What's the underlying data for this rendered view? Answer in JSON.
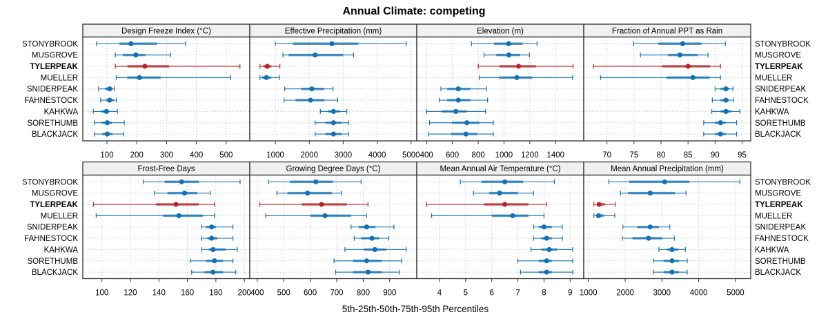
{
  "chart_data": {
    "type": "scatter",
    "subtype": "percentile-interval dot plot (5th-25th-50th-75th-95th)",
    "title": "Annual Climate: competing",
    "xlabel": "5th-25th-50th-75th-95th Percentiles",
    "ylabel": "",
    "grid": true,
    "legend": "none",
    "sites": [
      "STONYBROOK",
      "MUSGROVE",
      "TYLERPEAK",
      "MUELLER",
      "SNIDERPEAK",
      "FAHNESTOCK",
      "KAHKWA",
      "SORETHUMB",
      "BLACKJACK"
    ],
    "highlight_site": "TYLERPEAK",
    "colors": {
      "site": "#1370b3",
      "highlight": "#b9242a",
      "strip": "#f0f0f0",
      "grid": "#c8c8c8"
    },
    "value_order": [
      "p5",
      "p25",
      "p50",
      "p75",
      "p95"
    ],
    "panels": [
      {
        "title": "Design Freeze Index (°C)",
        "xlim": [
          19,
          579
        ],
        "ticks": [
          100,
          200,
          300,
          400,
          500
        ],
        "values": [
          [
            65,
            142,
            181,
            268,
            364
          ],
          [
            128,
            153,
            197,
            229,
            313
          ],
          [
            128,
            169,
            227,
            308,
            546
          ],
          [
            131,
            168,
            209,
            280,
            515
          ],
          [
            72,
            93,
            109,
            119,
            125
          ],
          [
            79,
            98,
            109,
            123,
            132
          ],
          [
            54,
            81,
            98,
            108,
            135
          ],
          [
            58,
            82,
            101,
            117,
            158
          ],
          [
            58,
            84,
            101,
            119,
            156
          ]
        ]
      },
      {
        "title": "Effective Precipitation (mm)",
        "xlim": [
          248,
          5167
        ],
        "ticks": [
          1000,
          2000,
          3000,
          4000,
          5000
        ],
        "values": [
          [
            1000,
            1515,
            2667,
            3446,
            4855
          ],
          [
            1224,
            1393,
            2172,
            3000,
            3305
          ],
          [
            547,
            649,
            763,
            885,
            1135
          ],
          [
            547,
            614,
            736,
            885,
            1122
          ],
          [
            1278,
            1766,
            2077,
            2443,
            2701
          ],
          [
            1257,
            1596,
            2037,
            2443,
            2836
          ],
          [
            2328,
            2545,
            2714,
            2904,
            3107
          ],
          [
            2172,
            2477,
            2714,
            2951,
            3154
          ],
          [
            2172,
            2477,
            2714,
            2951,
            3154
          ]
        ]
      },
      {
        "title": "Elevation (m)",
        "xlim": [
          324,
          1618
        ],
        "ticks": [
          400,
          600,
          800,
          1000,
          1200,
          1400
        ],
        "values": [
          [
            748,
            922,
            1036,
            1145,
            1256
          ],
          [
            846,
            940,
            1038,
            1126,
            1197
          ],
          [
            801,
            965,
            1113,
            1247,
            1536
          ],
          [
            809,
            961,
            1099,
            1220,
            1532
          ],
          [
            511,
            560,
            646,
            739,
            865
          ],
          [
            498,
            560,
            646,
            739,
            873
          ],
          [
            400,
            516,
            627,
            712,
            858
          ],
          [
            423,
            596,
            712,
            810,
            917
          ],
          [
            416,
            591,
            705,
            792,
            917
          ]
        ]
      },
      {
        "title": "Fraction of Annual PPT as Rain",
        "xlim": [
          65.7,
          96.6
        ],
        "ticks": [
          70,
          75,
          80,
          85,
          90,
          95
        ],
        "values": [
          [
            74.9,
            79.5,
            84.0,
            87.5,
            91.9
          ],
          [
            76.2,
            81.3,
            83.5,
            86.8,
            88.7
          ],
          [
            67.5,
            80.2,
            85.0,
            89.1,
            91.0
          ],
          [
            68.8,
            81.0,
            85.9,
            89.0,
            91.0
          ],
          [
            90.0,
            91.0,
            92.0,
            92.6,
            93.3
          ],
          [
            89.5,
            91.0,
            92.0,
            92.6,
            93.4
          ],
          [
            89.4,
            91.0,
            92.0,
            93.0,
            94.6
          ],
          [
            87.9,
            90.0,
            91.0,
            92.0,
            94.0
          ],
          [
            87.9,
            90.0,
            91.0,
            92.0,
            94.0
          ]
        ]
      },
      {
        "title": "Frost-Free Days",
        "xlim": [
          86.6,
          203.8
        ],
        "ticks": [
          100,
          120,
          140,
          160,
          180,
          200
        ],
        "values": [
          [
            129,
            144,
            156,
            168,
            197
          ],
          [
            137,
            146,
            158,
            167,
            176
          ],
          [
            94,
            138,
            152,
            168,
            179
          ],
          [
            96,
            143,
            154,
            171,
            179
          ],
          [
            170,
            173,
            177,
            180,
            192
          ],
          [
            170,
            174,
            177,
            181,
            192
          ],
          [
            170,
            175,
            178,
            187,
            195
          ],
          [
            162,
            173,
            179,
            185,
            192
          ],
          [
            163,
            172,
            178,
            185,
            194
          ]
        ]
      },
      {
        "title": "Growing Degree Days (°C)",
        "xlim": [
          372,
          1002
        ],
        "ticks": [
          400,
          500,
          600,
          700,
          800,
          900
        ],
        "values": [
          [
            443,
            523,
            621,
            686,
            792
          ],
          [
            474,
            514,
            590,
            682,
            718
          ],
          [
            410,
            568,
            643,
            738,
            818
          ],
          [
            432,
            601,
            656,
            754,
            812
          ],
          [
            754,
            783,
            813,
            846,
            916
          ],
          [
            766,
            792,
            833,
            861,
            896
          ],
          [
            731,
            803,
            844,
            887,
            962
          ],
          [
            690,
            761,
            813,
            870,
            945
          ],
          [
            696,
            761,
            818,
            870,
            937
          ]
        ]
      },
      {
        "title": "Mean Annual Air Temperature (°C)",
        "xlim": [
          3.13,
          9.52
        ],
        "ticks": [
          4,
          5,
          6,
          7,
          8,
          9
        ],
        "values": [
          [
            4.8,
            5.6,
            6.5,
            7.2,
            8.4
          ],
          [
            5.3,
            5.9,
            6.3,
            7.0,
            7.6
          ],
          [
            3.5,
            5.7,
            6.5,
            7.4,
            8.1
          ],
          [
            3.7,
            6.0,
            6.8,
            7.4,
            8.0
          ],
          [
            7.6,
            7.8,
            8.0,
            8.3,
            8.7
          ],
          [
            7.6,
            7.9,
            8.1,
            8.3,
            8.7
          ],
          [
            7.5,
            7.9,
            8.2,
            8.5,
            9.1
          ],
          [
            7.0,
            7.8,
            8.1,
            8.3,
            9.1
          ],
          [
            7.1,
            7.8,
            8.1,
            8.3,
            9.1
          ]
        ]
      },
      {
        "title": "Mean Annual Precipitation (mm)",
        "xlim": [
          874,
          5415
        ],
        "ticks": [
          1000,
          2000,
          3000,
          4000,
          5000
        ],
        "values": [
          [
            1555,
            2107,
            3075,
            3750,
            5120
          ],
          [
            1874,
            2075,
            2681,
            3357,
            3657
          ],
          [
            1150,
            1231,
            1293,
            1450,
            1732
          ],
          [
            1150,
            1212,
            1281,
            1418,
            1719
          ],
          [
            1938,
            2325,
            2681,
            2919,
            3214
          ],
          [
            1919,
            2201,
            2638,
            3013,
            3338
          ],
          [
            2919,
            3138,
            3276,
            3450,
            3638
          ],
          [
            2764,
            3045,
            3276,
            3463,
            3688
          ],
          [
            2764,
            3045,
            3276,
            3463,
            3688
          ]
        ]
      }
    ]
  }
}
